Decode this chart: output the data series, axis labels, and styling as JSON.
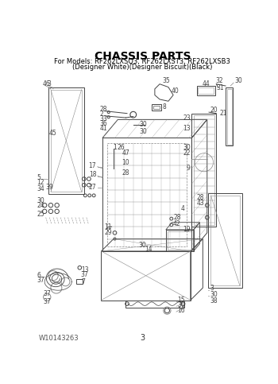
{
  "title": "CHASSIS PARTS",
  "subtitle1": "For Models: RF262LXSQ3, RF262LXST3, RF262LXSB3",
  "subtitle2": "(Designer White)(Designer Biscuit)(Black)",
  "footer_left": "W10143263",
  "footer_center": "3",
  "bg_color": "#ffffff",
  "text_color": "#000000",
  "title_fontsize": 10,
  "subtitle_fontsize": 6.0,
  "footer_fontsize": 6,
  "label_fontsize": 5.5,
  "gray": "#444444",
  "lgray": "#888888"
}
